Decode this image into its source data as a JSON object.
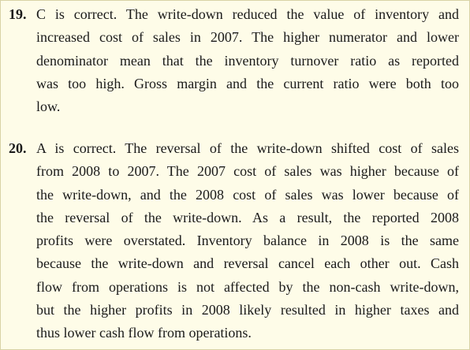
{
  "answers": [
    {
      "number": "19.",
      "lines": [
        "C is correct. The write-down reduced the value of inventory and",
        "increased cost of sales in 2007. The higher numerator and lower",
        "denominator mean that the inventory turnover ratio as reported",
        "was too high. Gross margin and the current ratio were both too",
        "low."
      ]
    },
    {
      "number": "20.",
      "lines": [
        "A is correct. The reversal of the write-down shifted cost of sales",
        "from 2008 to 2007. The 2007 cost of sales was higher because of",
        "the write-down, and the 2008 cost of sales was lower because of",
        "the reversal of the write-down. As a result, the reported 2008",
        "profits were overstated. Inventory balance in 2008 is the same",
        "because the write-down and reversal cancel each other out. Cash",
        "flow from operations is not affected by the non-cash write-down,",
        "but the higher profits in 2008 likely resulted in higher taxes and",
        "thus lower cash flow from operations."
      ]
    }
  ]
}
